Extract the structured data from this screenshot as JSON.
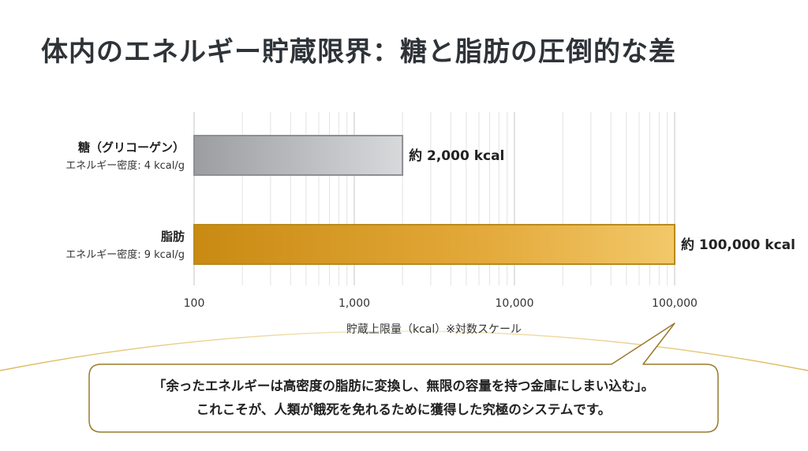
{
  "title": "体内のエネルギー貯蔵限界：糖と脂肪の圧倒的な差",
  "chart_data": {
    "type": "bar",
    "orientation": "horizontal",
    "scale": "log",
    "xlim": [
      100,
      100000
    ],
    "grid": true,
    "xlabel": "貯蔵上限量（kcal）※対数スケール",
    "ticks": [
      {
        "value": 100,
        "label": "100"
      },
      {
        "value": 1000,
        "label": "1,000"
      },
      {
        "value": 10000,
        "label": "10,000"
      },
      {
        "value": 100000,
        "label": "100,000"
      }
    ],
    "categories": [
      {
        "name": "糖（グリコーゲン）",
        "sub": "エネルギー密度: 4 kcal/g",
        "value": 2000,
        "label": "約 2,000 kcal",
        "color": "#b8b9bc"
      },
      {
        "name": "脂肪",
        "sub": "エネルギー密度: 9 kcal/g",
        "value": 100000,
        "label": "約 100,000 kcal",
        "color": "#d9a02a"
      }
    ]
  },
  "callout": {
    "line1": "「余ったエネルギーは高密度の脂肪に変換し、無限の容量を持つ金庫にしまい込む」。",
    "line2": "これこそが、人類が餓死を免れるために獲得した究極のシステムです。"
  },
  "colors": {
    "title": "#2e3338",
    "gold_curve": "#d6ab3c",
    "callout_border": "#9a7a2a"
  }
}
